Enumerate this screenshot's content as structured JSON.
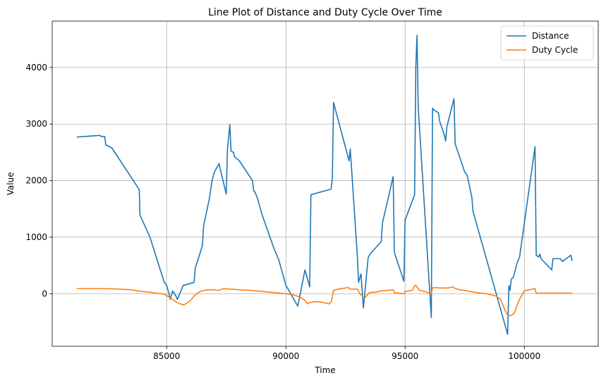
{
  "chart_data": {
    "type": "line",
    "title": "Line Plot of Distance and Duty Cycle Over Time",
    "xlabel": "Time",
    "ylabel": "Value",
    "xlim": [
      80200,
      103100
    ],
    "ylim": [
      -930,
      4820
    ],
    "xticks": [
      85000,
      90000,
      95000,
      100000
    ],
    "xtick_labels": [
      "85000",
      "90000",
      "95000",
      "100000"
    ],
    "yticks": [
      0,
      1000,
      2000,
      3000,
      4000
    ],
    "ytick_labels": [
      "0",
      "1000",
      "2000",
      "3000",
      "4000"
    ],
    "grid": true,
    "legend_position": "top-right",
    "series": [
      {
        "name": "Distance",
        "color": "#1f77b4",
        "x": [
          81250,
          82200,
          82250,
          82400,
          82450,
          82600,
          82700,
          83850,
          83880,
          84300,
          84600,
          84900,
          85000,
          85100,
          85150,
          85250,
          85400,
          85450,
          85700,
          85750,
          86150,
          86200,
          86500,
          86550,
          86600,
          86700,
          86800,
          86900,
          87000,
          87200,
          87250,
          87500,
          87550,
          87650,
          87700,
          87800,
          87850,
          88050,
          88600,
          88650,
          88700,
          88800,
          89000,
          89500,
          89700,
          90000,
          90500,
          90800,
          91000,
          91050,
          91900,
          91950,
          92000,
          92650,
          92700,
          93000,
          93050,
          93150,
          93250,
          93450,
          93500,
          93650,
          93700,
          94000,
          94050,
          94500,
          94550,
          94950,
          95000,
          95400,
          95450,
          95500,
          95550,
          96100,
          96150,
          96200,
          96400,
          96450,
          96650,
          96700,
          96750,
          97050,
          97100,
          97300,
          97500,
          97600,
          97700,
          97800,
          97850,
          97900,
          99300,
          99350,
          99400,
          99450,
          99550,
          99700,
          99750,
          99800,
          100450,
          100500,
          100600,
          100650,
          100700,
          101150,
          101200,
          101500,
          101550,
          101600,
          101950,
          102000
        ],
        "y": [
          2770,
          2800,
          2780,
          2780,
          2630,
          2600,
          2580,
          1840,
          1390,
          1000,
          600,
          200,
          150,
          0,
          -100,
          50,
          -50,
          -100,
          150,
          150,
          200,
          450,
          850,
          1200,
          1300,
          1500,
          1700,
          2000,
          2150,
          2300,
          2200,
          1760,
          2550,
          2990,
          2520,
          2500,
          2420,
          2350,
          2000,
          1820,
          1800,
          1700,
          1400,
          800,
          600,
          150,
          -220,
          420,
          120,
          1750,
          1850,
          2050,
          3380,
          2350,
          2560,
          650,
          200,
          350,
          -250,
          630,
          680,
          760,
          780,
          920,
          1250,
          2070,
          730,
          220,
          1300,
          1750,
          4000,
          4570,
          3300,
          -420,
          3280,
          3250,
          3200,
          3050,
          2800,
          2700,
          2950,
          3450,
          2650,
          2400,
          2150,
          2100,
          1900,
          1700,
          1450,
          1380,
          -720,
          140,
          60,
          250,
          300,
          550,
          600,
          650,
          2600,
          680,
          650,
          700,
          620,
          420,
          620,
          620,
          600,
          570,
          680,
          590
        ]
      },
      {
        "name": "Duty Cycle",
        "color": "#ff7f0e",
        "x": [
          81250,
          82000,
          82400,
          83000,
          83500,
          83800,
          84200,
          84600,
          84900,
          85100,
          85300,
          85500,
          85700,
          85800,
          86000,
          86200,
          86400,
          86600,
          86700,
          86800,
          86900,
          87000,
          87100,
          87200,
          87300,
          87500,
          87600,
          87700,
          88000,
          88500,
          89000,
          89500,
          90000,
          90300,
          90600,
          90800,
          90900,
          91000,
          91100,
          91300,
          91500,
          91700,
          91800,
          91900,
          92000,
          92200,
          92500,
          92600,
          92700,
          93000,
          93100,
          93300,
          93500,
          93800,
          94000,
          94300,
          94500,
          94550,
          94950,
          95000,
          95300,
          95400,
          95450,
          95500,
          95600,
          95800,
          96100,
          96150,
          96200,
          96500,
          96800,
          97000,
          97100,
          97300,
          97600,
          98000,
          98400,
          98800,
          99000,
          99100,
          99200,
          99300,
          99400,
          99500,
          99600,
          99700,
          99800,
          100000,
          100450,
          100500,
          100600,
          101000,
          101500,
          102000
        ],
        "y": [
          90,
          90,
          90,
          80,
          70,
          50,
          30,
          10,
          -10,
          -60,
          -120,
          -170,
          -200,
          -180,
          -120,
          -20,
          40,
          60,
          70,
          70,
          70,
          70,
          60,
          60,
          80,
          90,
          80,
          80,
          70,
          60,
          40,
          20,
          0,
          -20,
          -60,
          -120,
          -180,
          -160,
          -150,
          -140,
          -150,
          -170,
          -180,
          -150,
          60,
          80,
          100,
          110,
          80,
          80,
          0,
          -80,
          20,
          30,
          50,
          60,
          70,
          20,
          0,
          40,
          60,
          140,
          150,
          120,
          60,
          40,
          10,
          100,
          110,
          100,
          100,
          120,
          90,
          70,
          50,
          20,
          0,
          -40,
          -100,
          -200,
          -300,
          -380,
          -390,
          -370,
          -330,
          -200,
          -100,
          50,
          90,
          10,
          10,
          10,
          10,
          10
        ]
      }
    ]
  }
}
